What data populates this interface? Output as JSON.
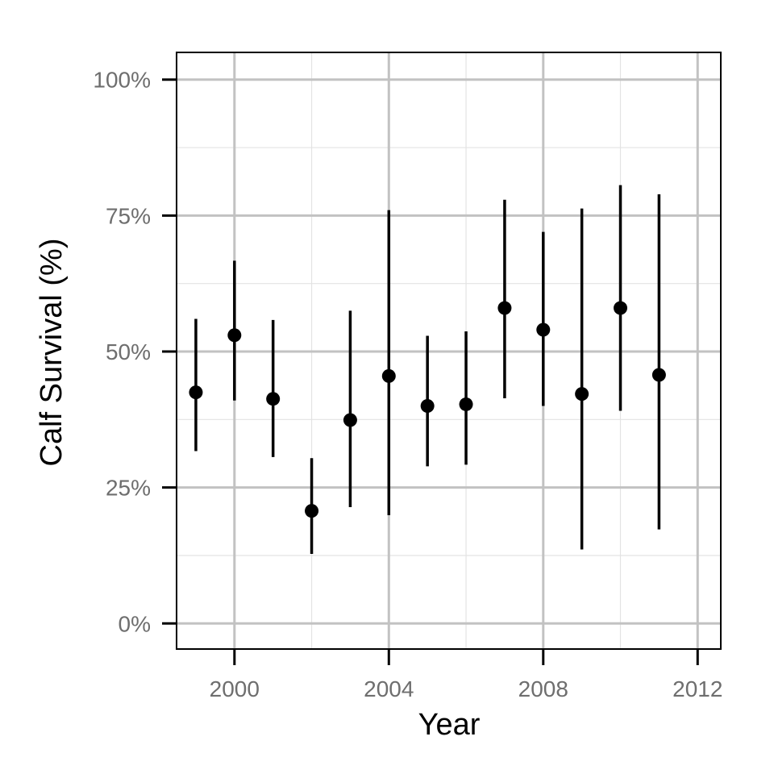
{
  "chart_data": {
    "type": "scatter",
    "xlabel": "Year",
    "ylabel": "Calf Survival (%)",
    "xlim": [
      1998.5,
      2012.6
    ],
    "ylim": [
      -0.047,
      1.05
    ],
    "x_major_ticks": [
      2000,
      2004,
      2008,
      2012
    ],
    "x_minor_ticks": [
      2002,
      2006,
      2010
    ],
    "y_major_ticks": [
      0,
      0.25,
      0.5,
      0.75,
      1.0
    ],
    "y_minor_ticks": [
      0.125,
      0.375,
      0.625,
      0.875
    ],
    "x_tick_labels": [
      "2000",
      "2004",
      "2008",
      "2012"
    ],
    "y_tick_labels": [
      "0%",
      "25%",
      "50%",
      "75%",
      "100%"
    ],
    "grid": true,
    "series": [
      {
        "points": [
          {
            "x": 1999,
            "y": 0.425,
            "lower": 0.317,
            "upper": 0.56
          },
          {
            "x": 2000,
            "y": 0.53,
            "lower": 0.41,
            "upper": 0.667
          },
          {
            "x": 2001,
            "y": 0.413,
            "lower": 0.306,
            "upper": 0.558
          },
          {
            "x": 2002,
            "y": 0.207,
            "lower": 0.128,
            "upper": 0.304
          },
          {
            "x": 2003,
            "y": 0.374,
            "lower": 0.214,
            "upper": 0.575
          },
          {
            "x": 2004,
            "y": 0.455,
            "lower": 0.199,
            "upper": 0.76
          },
          {
            "x": 2005,
            "y": 0.4,
            "lower": 0.289,
            "upper": 0.529
          },
          {
            "x": 2006,
            "y": 0.403,
            "lower": 0.292,
            "upper": 0.537
          },
          {
            "x": 2007,
            "y": 0.58,
            "lower": 0.414,
            "upper": 0.779
          },
          {
            "x": 2008,
            "y": 0.54,
            "lower": 0.4,
            "upper": 0.72
          },
          {
            "x": 2009,
            "y": 0.422,
            "lower": 0.136,
            "upper": 0.763
          },
          {
            "x": 2010,
            "y": 0.58,
            "lower": 0.391,
            "upper": 0.806
          },
          {
            "x": 2011,
            "y": 0.457,
            "lower": 0.173,
            "upper": 0.789
          }
        ]
      }
    ]
  }
}
